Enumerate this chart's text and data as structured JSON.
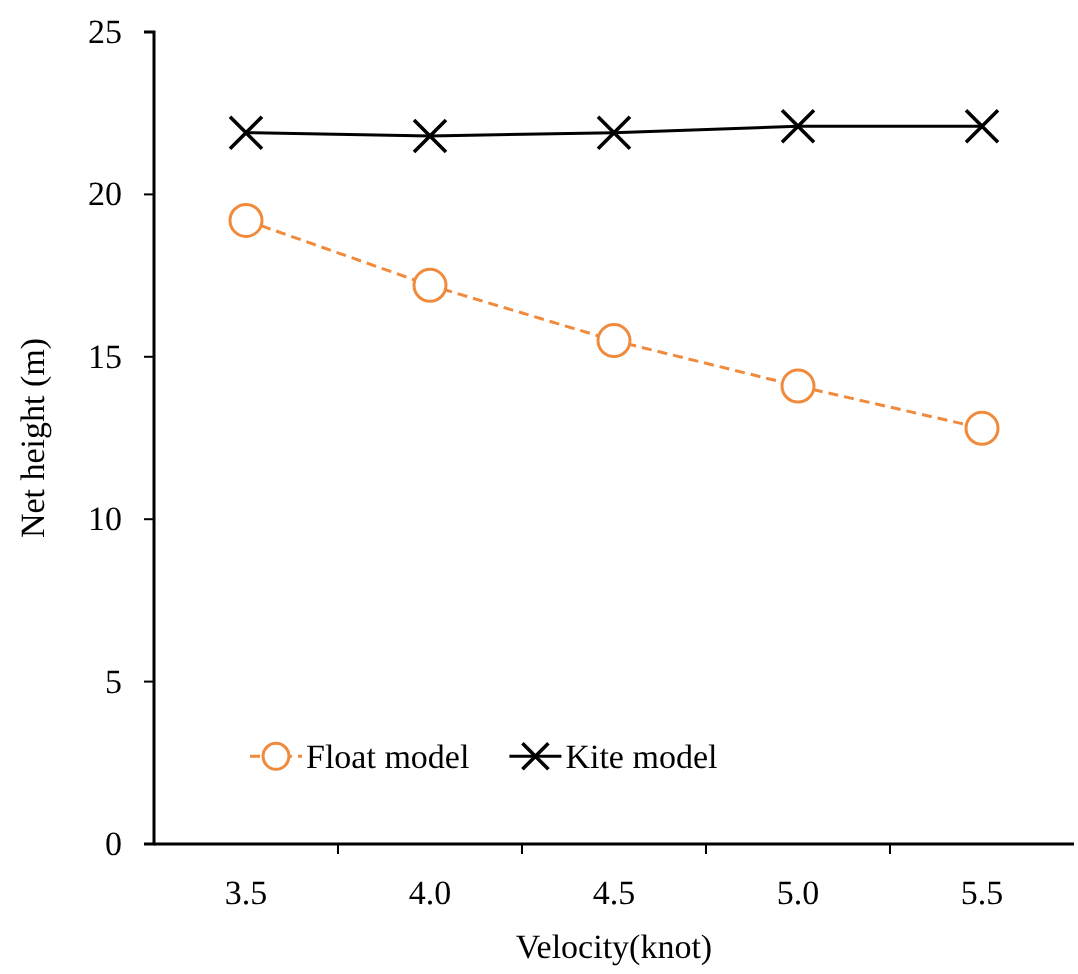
{
  "chart_data": {
    "type": "line",
    "xlabel": "Velocity(knot)",
    "ylabel": "Net height (m)",
    "categories": [
      "3.5",
      "4.0",
      "4.5",
      "5.0",
      "5.5"
    ],
    "series": [
      {
        "name": "Float model",
        "color": "#f08a3c",
        "values": [
          19.2,
          17.2,
          15.5,
          14.1,
          12.8
        ],
        "marker": "circle",
        "line_style": "dashed"
      },
      {
        "name": "Kite model",
        "color": "#000000",
        "values": [
          21.9,
          21.8,
          21.9,
          22.1,
          22.1
        ],
        "marker": "cross",
        "line_style": "solid"
      }
    ],
    "ylim": [
      0,
      25
    ],
    "yticks": [
      0,
      5,
      10,
      15,
      20,
      25
    ],
    "grid": false,
    "legend": "bottom left"
  }
}
